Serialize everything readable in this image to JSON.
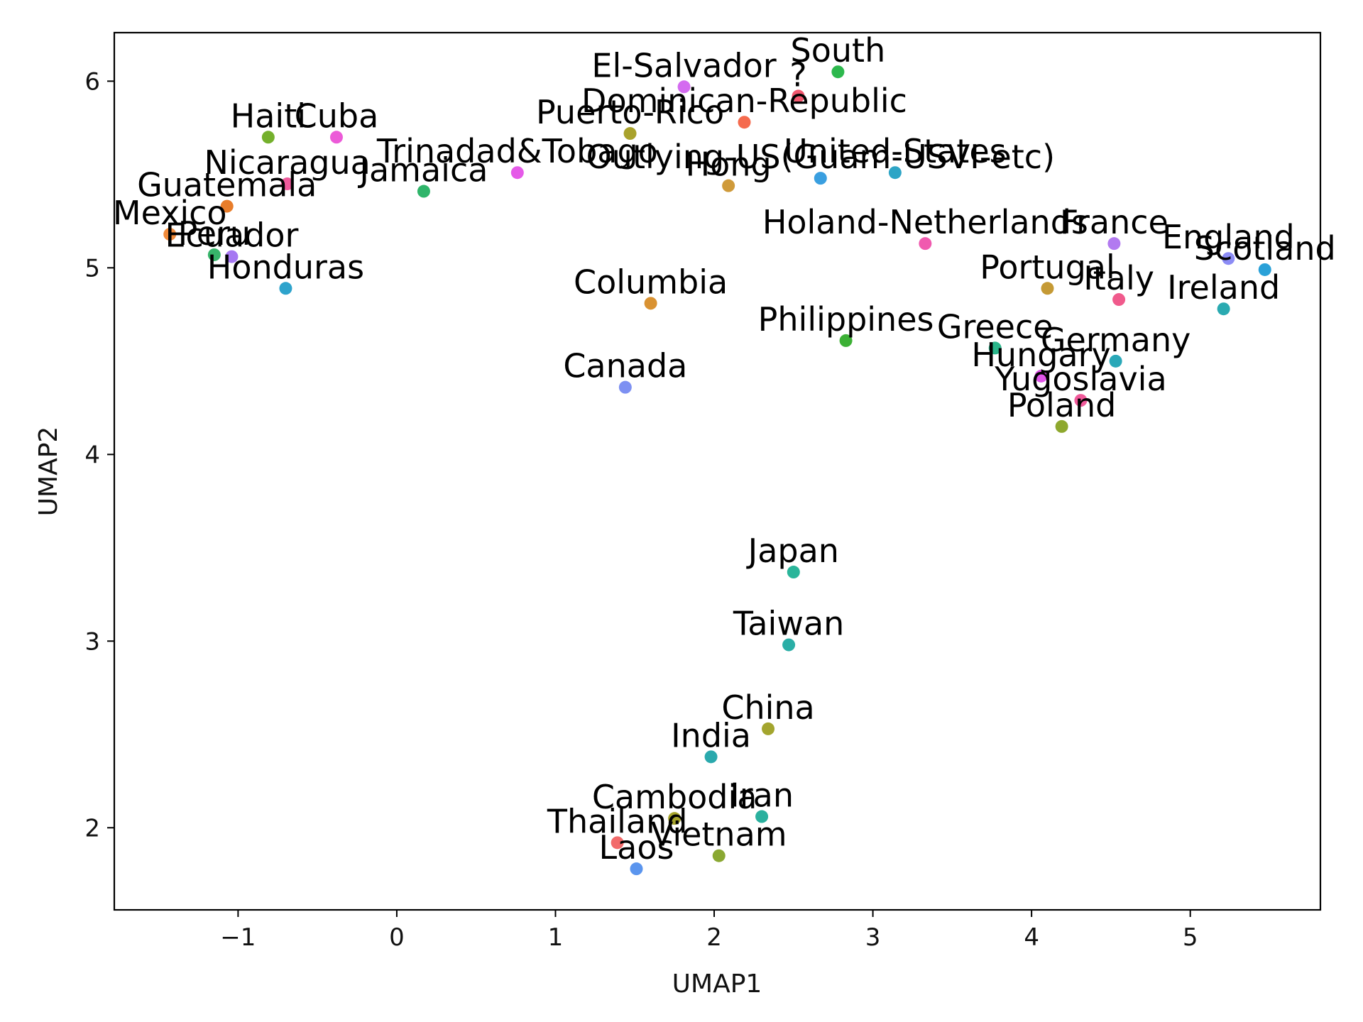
{
  "chart_data": {
    "type": "scatter",
    "title": "",
    "xlabel": "UMAP1",
    "ylabel": "UMAP2",
    "xlim": [
      -1.78,
      5.82
    ],
    "ylim": [
      1.56,
      6.26
    ],
    "xticks": [
      -1,
      0,
      1,
      2,
      3,
      4,
      5
    ],
    "xtick_labels": [
      "−1",
      "0",
      "1",
      "2",
      "3",
      "4",
      "5"
    ],
    "yticks": [
      2,
      3,
      4,
      5,
      6
    ],
    "ytick_labels": [
      "2",
      "3",
      "4",
      "5",
      "6"
    ],
    "grid": false,
    "points": [
      {
        "label": "South",
        "x": 2.78,
        "y": 6.05,
        "color": "#2db84d"
      },
      {
        "label": "El-Salvador",
        "x": 1.81,
        "y": 5.97,
        "color": "#d46bf0"
      },
      {
        "label": "?",
        "x": 2.53,
        "y": 5.92,
        "color": "#f2576e"
      },
      {
        "label": "Dominican-Republic",
        "x": 2.19,
        "y": 5.78,
        "color": "#f56b4e"
      },
      {
        "label": "Puerto-Rico",
        "x": 1.47,
        "y": 5.72,
        "color": "#a9a22c"
      },
      {
        "label": "Haiti",
        "x": -0.81,
        "y": 5.7,
        "color": "#74b02c"
      },
      {
        "label": "Cuba",
        "x": -0.38,
        "y": 5.7,
        "color": "#ec5ad8"
      },
      {
        "label": "Trinadad&Tobago",
        "x": 0.76,
        "y": 5.51,
        "color": "#e55ae8"
      },
      {
        "label": "United-States",
        "x": 3.14,
        "y": 5.51,
        "color": "#2ea5c6"
      },
      {
        "label": "Outlying-US(Guam-USVI-etc)",
        "x": 2.67,
        "y": 5.48,
        "color": "#3a9fe0"
      },
      {
        "label": "Nicaragua",
        "x": -0.69,
        "y": 5.45,
        "color": "#ef5a9c"
      },
      {
        "label": "Hong",
        "x": 2.09,
        "y": 5.44,
        "color": "#cf9a3a"
      },
      {
        "label": "Jamaica",
        "x": 0.17,
        "y": 5.41,
        "color": "#2fb56a"
      },
      {
        "label": "Guatemala",
        "x": -1.07,
        "y": 5.33,
        "color": "#e87d2a"
      },
      {
        "label": "Mexico",
        "x": -1.43,
        "y": 5.18,
        "color": "#f08a3a"
      },
      {
        "label": "Holand-Netherlands",
        "x": 3.33,
        "y": 5.13,
        "color": "#f05aaf"
      },
      {
        "label": "France",
        "x": 4.52,
        "y": 5.13,
        "color": "#b27af0"
      },
      {
        "label": "Peru",
        "x": -1.15,
        "y": 5.07,
        "color": "#37b46a"
      },
      {
        "label": "Ecuador",
        "x": -1.04,
        "y": 5.06,
        "color": "#a678f2"
      },
      {
        "label": "England",
        "x": 5.24,
        "y": 5.05,
        "color": "#8c8cf5"
      },
      {
        "label": "Scotland",
        "x": 5.47,
        "y": 4.99,
        "color": "#2aa1d8"
      },
      {
        "label": "Honduras",
        "x": -0.7,
        "y": 4.89,
        "color": "#2ea3cc"
      },
      {
        "label": "Portugal",
        "x": 4.1,
        "y": 4.89,
        "color": "#c59a35"
      },
      {
        "label": "Italy",
        "x": 4.55,
        "y": 4.83,
        "color": "#f05a8c"
      },
      {
        "label": "Columbia",
        "x": 1.6,
        "y": 4.81,
        "color": "#d99232"
      },
      {
        "label": "Ireland",
        "x": 5.21,
        "y": 4.78,
        "color": "#2aaab1"
      },
      {
        "label": "Philippines",
        "x": 2.83,
        "y": 4.61,
        "color": "#3cb035"
      },
      {
        "label": "Greece",
        "x": 3.77,
        "y": 4.57,
        "color": "#2ab58a"
      },
      {
        "label": "Germany",
        "x": 4.53,
        "y": 4.5,
        "color": "#2aa8b8"
      },
      {
        "label": "Hungary",
        "x": 4.06,
        "y": 4.42,
        "color": "#e055e8"
      },
      {
        "label": "Canada",
        "x": 1.44,
        "y": 4.36,
        "color": "#7d90f2"
      },
      {
        "label": "Yugoslavia",
        "x": 4.31,
        "y": 4.29,
        "color": "#f05a9a"
      },
      {
        "label": "Poland",
        "x": 4.19,
        "y": 4.15,
        "color": "#8ea82e"
      },
      {
        "label": "Japan",
        "x": 2.5,
        "y": 3.37,
        "color": "#2ab59a"
      },
      {
        "label": "Taiwan",
        "x": 2.47,
        "y": 2.98,
        "color": "#2aaea6"
      },
      {
        "label": "China",
        "x": 2.34,
        "y": 2.53,
        "color": "#a3a52e"
      },
      {
        "label": "India",
        "x": 1.98,
        "y": 2.38,
        "color": "#2aa9ad"
      },
      {
        "label": "Iran",
        "x": 2.3,
        "y": 2.06,
        "color": "#2ab09e"
      },
      {
        "label": "Cambodia",
        "x": 1.75,
        "y": 2.05,
        "color": "#a6a42c"
      },
      {
        "label": "Thailand",
        "x": 1.39,
        "y": 1.92,
        "color": "#f26a6a"
      },
      {
        "label": "Vietnam",
        "x": 2.03,
        "y": 1.85,
        "color": "#8aa832"
      },
      {
        "label": "Laos",
        "x": 1.51,
        "y": 1.78,
        "color": "#5b95ee"
      }
    ]
  }
}
